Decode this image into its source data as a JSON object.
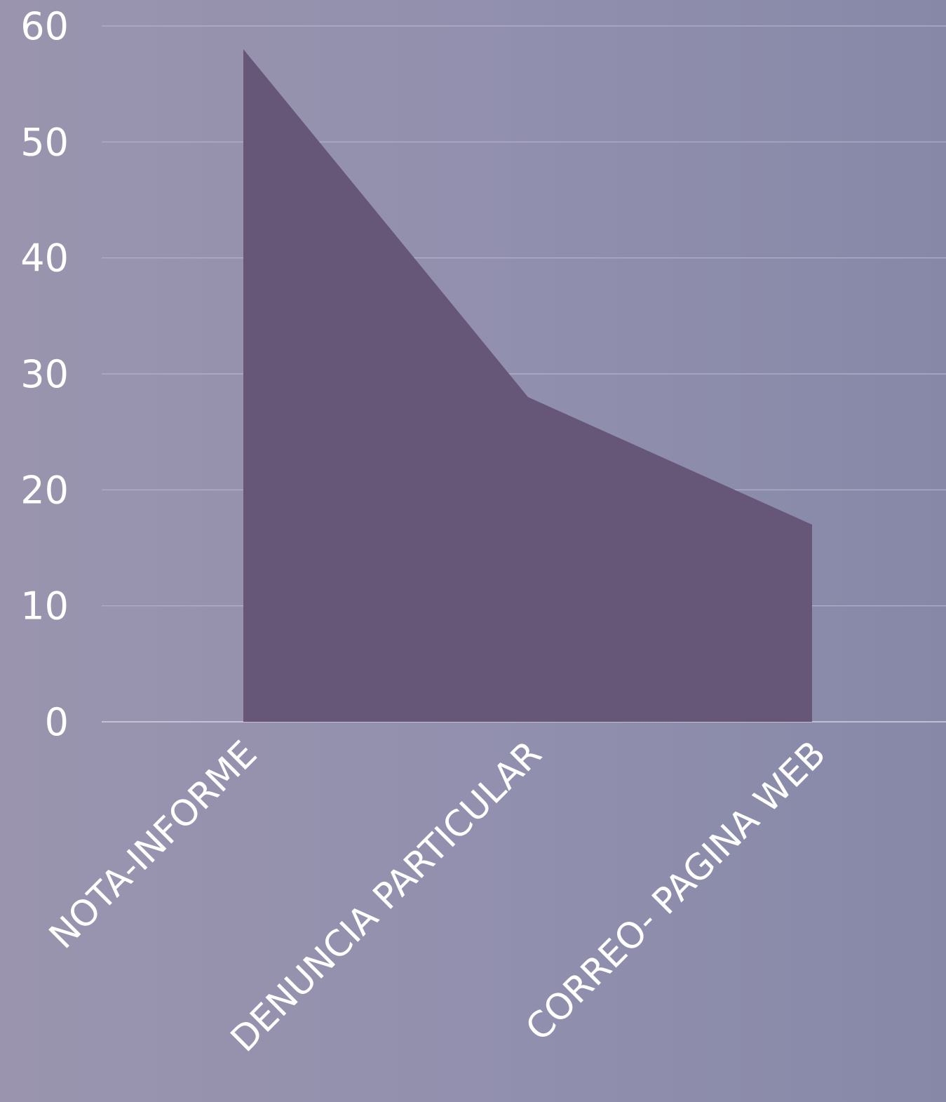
{
  "chart_data": {
    "type": "area",
    "categories": [
      "NOTA-INFORME",
      "DENUNCIA PARTICULAR",
      "CORREO- PAGINA WEB"
    ],
    "values": [
      58,
      28,
      17
    ],
    "ylim": [
      0,
      60
    ],
    "yticks": [
      0,
      10,
      20,
      30,
      40,
      50,
      60
    ],
    "title": "",
    "xlabel": "",
    "ylabel": "",
    "grid": true,
    "legend": "none",
    "colors": {
      "area": "#665779",
      "background": "#928eac",
      "gridline": "#b6b4c8",
      "text": "#ffffff"
    }
  }
}
